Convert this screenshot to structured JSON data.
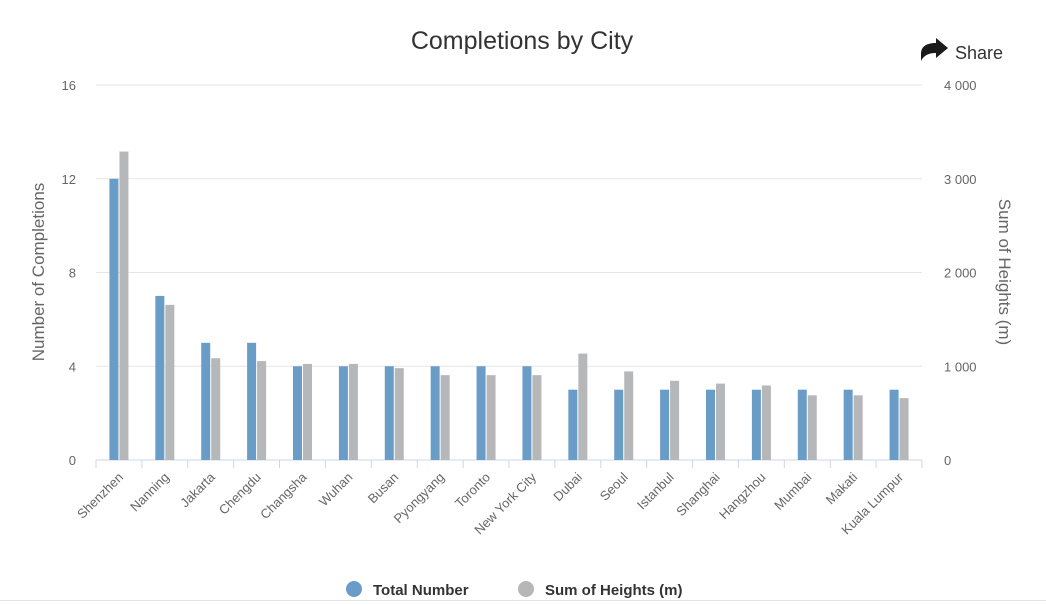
{
  "share": {
    "label": "Share",
    "icon": "share-arrow-icon"
  },
  "colors": {
    "total": "#6a9cc8",
    "heights": "#b5b7b9",
    "grid": "#e6e6e6",
    "axis": "#ccd6eb"
  },
  "chart_data": {
    "type": "bar",
    "title": "Completions by City",
    "ylabel": "Number of Completions",
    "ylabel_right": "Sum of Heights (m)",
    "ylim": [
      0,
      16
    ],
    "ylim_right": [
      0,
      4000
    ],
    "yticks": [
      0,
      4,
      8,
      12,
      16
    ],
    "yticks_labels": [
      "0",
      "4",
      "8",
      "12",
      "16"
    ],
    "yticks_right": [
      0,
      1000,
      2000,
      3000,
      4000
    ],
    "yticks_right_labels": [
      "0",
      "1 000",
      "2 000",
      "3 000",
      "4 000"
    ],
    "grid": true,
    "legend": "bottom-center",
    "categories": [
      "Shenzhen",
      "Nanning",
      "Jakarta",
      "Chengdu",
      "Changsha",
      "Wuhan",
      "Busan",
      "Pyongyang",
      "Toronto",
      "New York City",
      "Dubai",
      "Seoul",
      "Istanbul",
      "Shanghai",
      "Hangzhou",
      "Mumbai",
      "Makati",
      "Kuala Lumpur"
    ],
    "series": [
      {
        "name": "Total Number",
        "axis": "left",
        "values": [
          12,
          7,
          5,
          5,
          4,
          4,
          4,
          4,
          4,
          4,
          3,
          3,
          3,
          3,
          3,
          3,
          3,
          3
        ]
      },
      {
        "name": "Sum of Heights (m)",
        "axis": "right",
        "values": [
          3290,
          1655,
          1085,
          1055,
          1025,
          1025,
          980,
          905,
          905,
          905,
          1135,
          945,
          845,
          815,
          795,
          690,
          690,
          660
        ]
      }
    ]
  }
}
